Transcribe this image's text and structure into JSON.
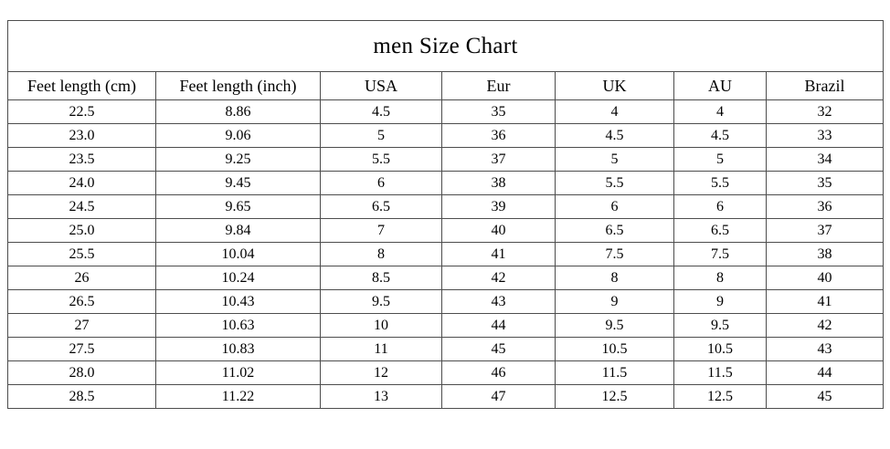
{
  "chart_data": {
    "type": "table",
    "title": "men Size Chart",
    "columns": [
      "Feet length (cm)",
      "Feet length (inch)",
      "USA",
      "Eur",
      "UK",
      "AU",
      "Brazil"
    ],
    "rows": [
      [
        "22.5",
        "8.86",
        "4.5",
        "35",
        "4",
        "4",
        "32"
      ],
      [
        "23.0",
        "9.06",
        "5",
        "36",
        "4.5",
        "4.5",
        "33"
      ],
      [
        "23.5",
        "9.25",
        "5.5",
        "37",
        "5",
        "5",
        "34"
      ],
      [
        "24.0",
        "9.45",
        "6",
        "38",
        "5.5",
        "5.5",
        "35"
      ],
      [
        "24.5",
        "9.65",
        "6.5",
        "39",
        "6",
        "6",
        "36"
      ],
      [
        "25.0",
        "9.84",
        "7",
        "40",
        "6.5",
        "6.5",
        "37"
      ],
      [
        "25.5",
        "10.04",
        "8",
        "41",
        "7.5",
        "7.5",
        "38"
      ],
      [
        "26",
        "10.24",
        "8.5",
        "42",
        "8",
        "8",
        "40"
      ],
      [
        "26.5",
        "10.43",
        "9.5",
        "43",
        "9",
        "9",
        "41"
      ],
      [
        "27",
        "10.63",
        "10",
        "44",
        "9.5",
        "9.5",
        "42"
      ],
      [
        "27.5",
        "10.83",
        "11",
        "45",
        "10.5",
        "10.5",
        "43"
      ],
      [
        "28.0",
        "11.02",
        "12",
        "46",
        "11.5",
        "11.5",
        "44"
      ],
      [
        "28.5",
        "11.22",
        "13",
        "47",
        "12.5",
        "12.5",
        "45"
      ]
    ],
    "colors": {
      "border": "#4d4d4d",
      "background": "#ffffff",
      "text": "#000000"
    }
  }
}
